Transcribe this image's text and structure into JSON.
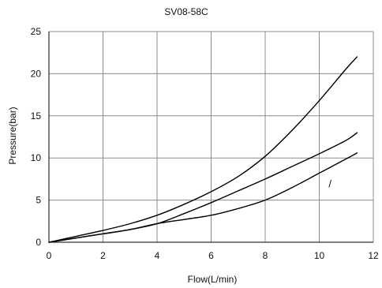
{
  "chart_data": {
    "type": "line",
    "title": "SV08-58C",
    "xlabel": "Flow(L/min)",
    "ylabel": "Pressure(bar)",
    "xlim": [
      0,
      12
    ],
    "ylim": [
      0,
      25
    ],
    "xticks": [
      0,
      2,
      4,
      6,
      8,
      10,
      12
    ],
    "yticks": [
      0,
      5,
      10,
      15,
      20,
      25
    ],
    "grid": true,
    "legend": "none",
    "colors": {
      "line": "#000000",
      "grid": "#8c8c8c",
      "axis": "#000000"
    },
    "annotations": [
      {
        "text": "/",
        "x": 10.4,
        "y": 6.5
      }
    ],
    "series": [
      {
        "x": [
          0,
          1,
          2,
          3,
          4,
          5,
          6,
          7,
          8,
          9,
          10,
          11,
          11.4
        ],
        "values": [
          0,
          0.7,
          1.4,
          2.2,
          3.2,
          4.5,
          6.0,
          7.8,
          10.2,
          13.3,
          16.8,
          20.6,
          22.0
        ]
      },
      {
        "x": [
          0,
          1,
          2,
          3,
          4,
          5,
          6,
          7,
          8,
          9,
          10,
          11,
          11.4
        ],
        "values": [
          0,
          0.5,
          1.0,
          1.5,
          2.2,
          3.4,
          4.7,
          6.1,
          7.5,
          9.0,
          10.5,
          12.1,
          13.0
        ]
      },
      {
        "x": [
          0,
          1,
          2,
          3,
          4,
          5,
          6,
          7,
          8,
          9,
          10,
          11,
          11.4
        ],
        "values": [
          0,
          0.5,
          1.0,
          1.5,
          2.2,
          2.7,
          3.2,
          4.0,
          5.0,
          6.5,
          8.2,
          9.9,
          10.6
        ]
      }
    ]
  }
}
